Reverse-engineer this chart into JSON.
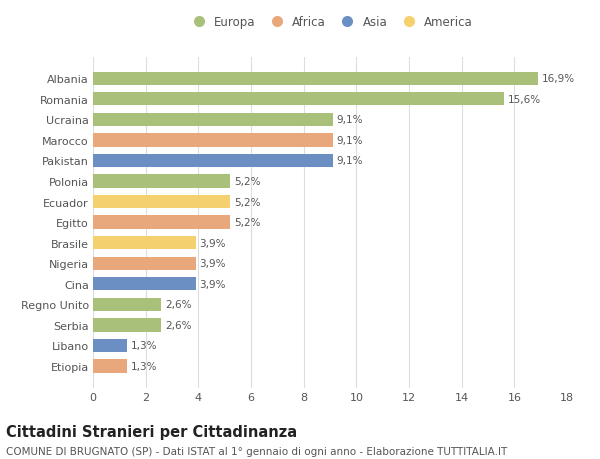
{
  "countries": [
    "Albania",
    "Romania",
    "Ucraina",
    "Marocco",
    "Pakistan",
    "Polonia",
    "Ecuador",
    "Egitto",
    "Brasile",
    "Nigeria",
    "Cina",
    "Regno Unito",
    "Serbia",
    "Libano",
    "Etiopia"
  ],
  "values": [
    16.9,
    15.6,
    9.1,
    9.1,
    9.1,
    5.2,
    5.2,
    5.2,
    3.9,
    3.9,
    3.9,
    2.6,
    2.6,
    1.3,
    1.3
  ],
  "labels": [
    "16,9%",
    "15,6%",
    "9,1%",
    "9,1%",
    "9,1%",
    "5,2%",
    "5,2%",
    "5,2%",
    "3,9%",
    "3,9%",
    "3,9%",
    "2,6%",
    "2,6%",
    "1,3%",
    "1,3%"
  ],
  "continents": [
    "Europa",
    "Europa",
    "Europa",
    "Africa",
    "Asia",
    "Europa",
    "America",
    "Africa",
    "America",
    "Africa",
    "Asia",
    "Europa",
    "Europa",
    "Asia",
    "Africa"
  ],
  "continent_colors": {
    "Europa": "#a8c07a",
    "Africa": "#e8a87c",
    "Asia": "#6b8fc2",
    "America": "#f5d06e"
  },
  "legend_order": [
    "Europa",
    "Africa",
    "Asia",
    "America"
  ],
  "title": "Cittadini Stranieri per Cittadinanza",
  "subtitle": "COMUNE DI BRUGNATO (SP) - Dati ISTAT al 1° gennaio di ogni anno - Elaborazione TUTTITALIA.IT",
  "xlim": [
    0,
    18
  ],
  "xticks": [
    0,
    2,
    4,
    6,
    8,
    10,
    12,
    14,
    16,
    18
  ],
  "background_color": "#ffffff",
  "grid_color": "#dddddd",
  "bar_height": 0.65,
  "title_fontsize": 10.5,
  "subtitle_fontsize": 7.5,
  "label_fontsize": 7.5,
  "tick_fontsize": 8,
  "legend_fontsize": 8.5
}
